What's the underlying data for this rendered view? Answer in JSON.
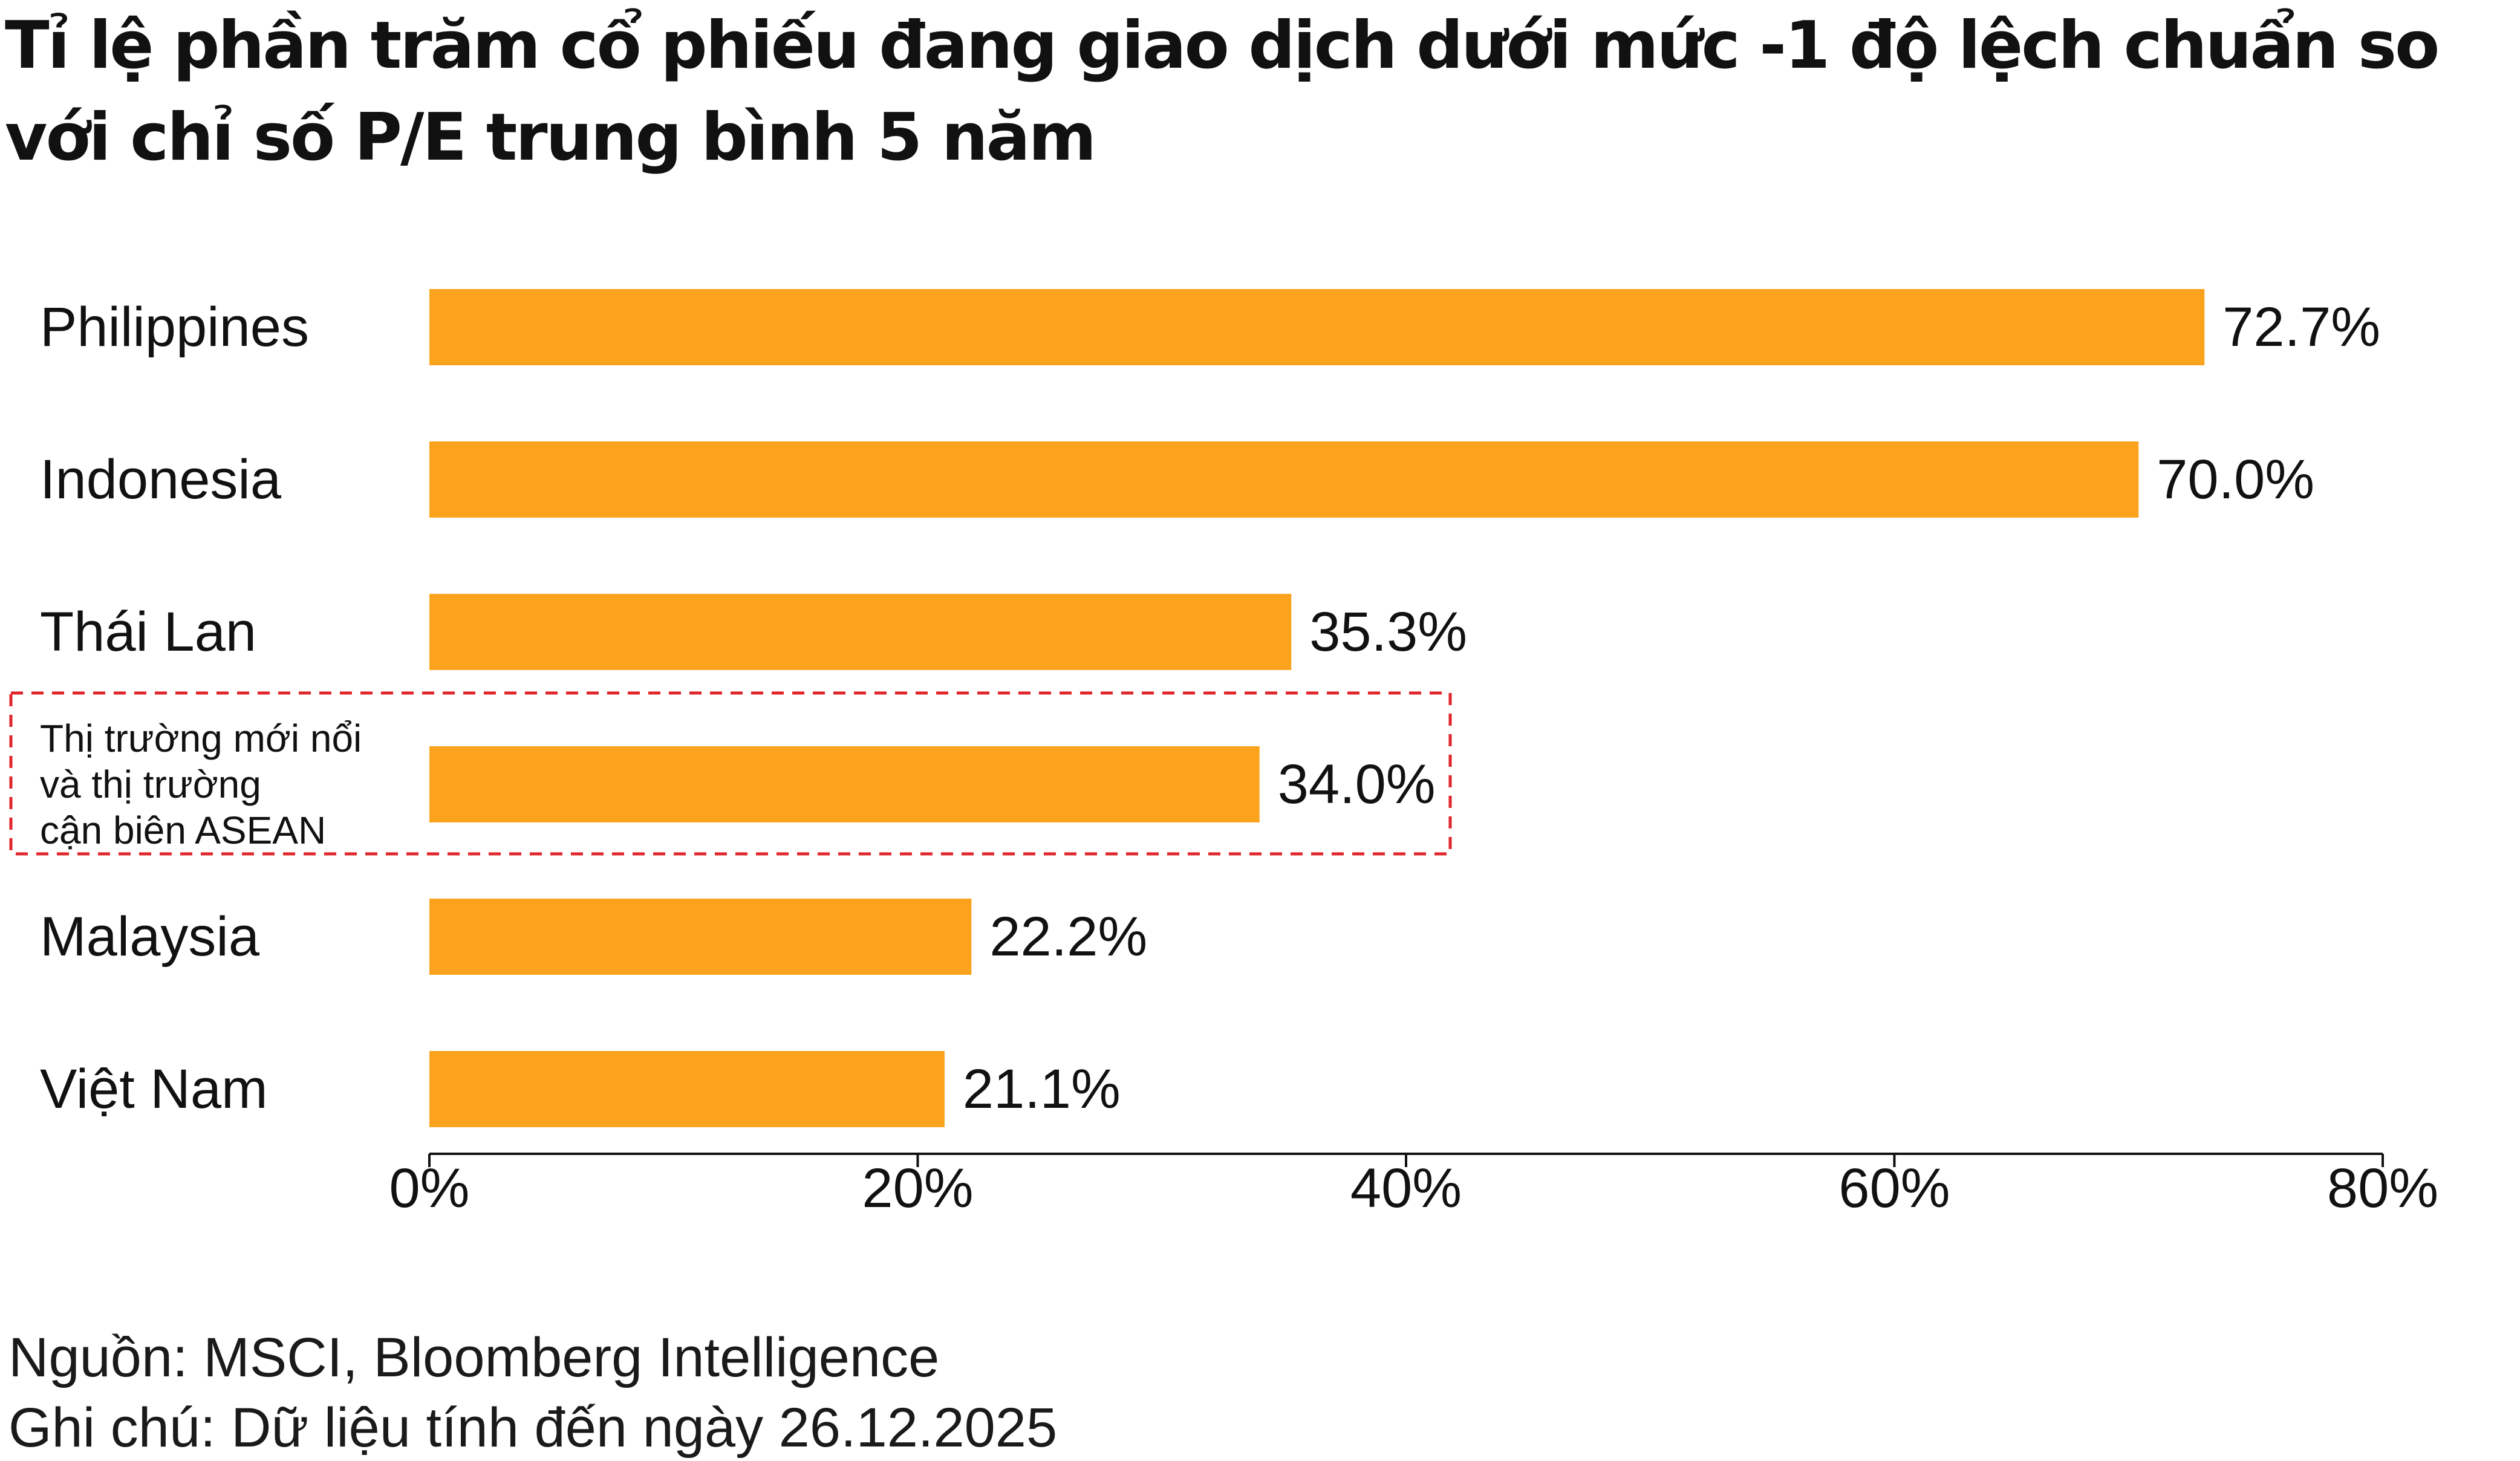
{
  "title": "Tỉ lệ phần trăm cổ phiếu đang giao dịch dưới mức -1 độ lệch chuẩn so với chỉ số P/E trung bình 5 năm",
  "chart_data": {
    "type": "bar",
    "orientation": "horizontal",
    "categories": [
      "Philippines",
      "Indonesia",
      "Thái Lan",
      "Thị trường mới nổi và thị trường cận biên ASEAN",
      "Malaysia",
      "Việt Nam"
    ],
    "category_lines": [
      [
        "Philippines"
      ],
      [
        "Indonesia"
      ],
      [
        "Thái Lan"
      ],
      [
        "Thị trường mới nổi",
        "và thị trường",
        "cận biên ASEAN"
      ],
      [
        "Malaysia"
      ],
      [
        "Việt Nam"
      ]
    ],
    "values": [
      72.7,
      70.0,
      35.3,
      34.0,
      22.2,
      21.1
    ],
    "value_labels": [
      "72.7%",
      "70.0%",
      "35.3%",
      "34.0%",
      "22.2%",
      "21.1%"
    ],
    "highlighted_category": "Thị trường mới nổi và thị trường cận biên ASEAN",
    "xlim": [
      0,
      80
    ],
    "xticks": [
      0,
      20,
      40,
      60,
      80
    ],
    "xtick_labels": [
      "0%",
      "20%",
      "40%",
      "60%",
      "80%"
    ],
    "xlabel": "",
    "ylabel": "",
    "grid": false,
    "legend": "none",
    "bar_color": "#FBA31C",
    "highlight_color": "#E0262B"
  },
  "footer": {
    "source": "Nguồn: MSCI, Bloomberg Intelligence",
    "note": "Ghi chú: Dữ liệu tính đến ngày 26.12.2025"
  }
}
